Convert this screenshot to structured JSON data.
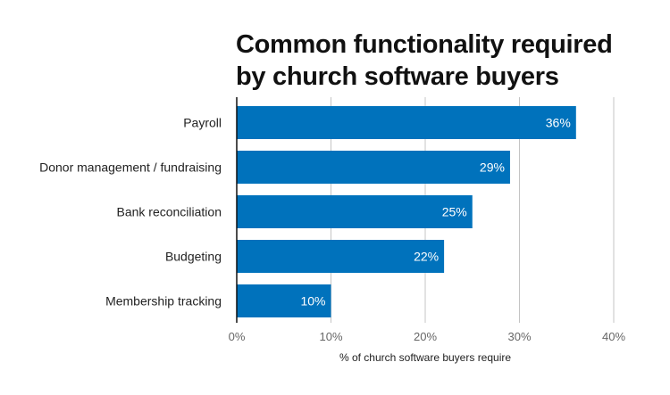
{
  "chart_data": {
    "type": "bar",
    "orientation": "horizontal",
    "title": "Common functionality required by church software buyers",
    "xlabel": "% of church software buyers require",
    "ylabel": "",
    "categories": [
      "Payroll",
      "Donor management / fundraising",
      "Bank reconciliation",
      "Budgeting",
      "Membership tracking"
    ],
    "values": [
      36,
      29,
      25,
      22,
      10
    ],
    "data_labels": [
      "36%",
      "29%",
      "25%",
      "22%",
      "10%"
    ],
    "xlim": [
      0,
      40
    ],
    "ticks": [
      0,
      10,
      20,
      30,
      40
    ],
    "tick_labels": [
      "0%",
      "10%",
      "20%",
      "30%",
      "40%"
    ],
    "grid": true,
    "legend": "none",
    "bar_color": "#0072BC"
  }
}
